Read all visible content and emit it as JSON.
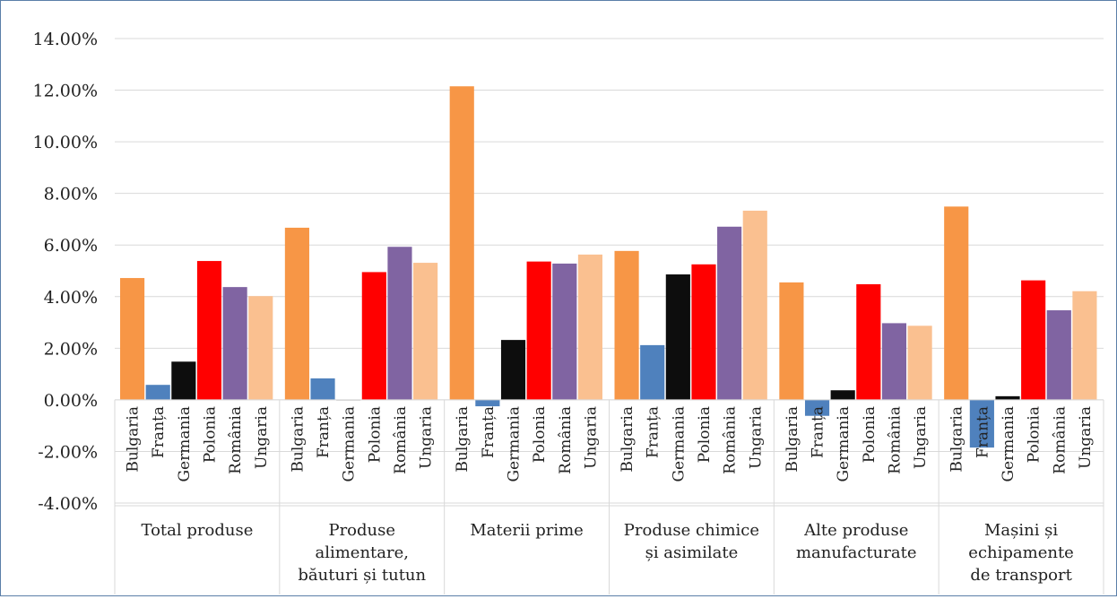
{
  "chart_data": {
    "type": "bar",
    "title": "",
    "xlabel": "",
    "ylabel": "",
    "ylim": [
      -0.04,
      0.14
    ],
    "y_ticks": [
      "-4.00%",
      "-2.00%",
      "0.00%",
      "2.00%",
      "4.00%",
      "6.00%",
      "8.00%",
      "10.00%",
      "12.00%",
      "14.00%"
    ],
    "grid": true,
    "legend": "none",
    "countries": [
      "Bulgaria",
      "Franța",
      "Germania",
      "Polonia",
      "România",
      "Ungaria"
    ],
    "country_colors": [
      "#f79646",
      "#4f81bd",
      "#0d0d0d",
      "#ff0000",
      "#8064a2",
      "#fac090"
    ],
    "groups": [
      {
        "label_lines": [
          "Total produse"
        ],
        "values": [
          0.0472,
          0.0058,
          0.0148,
          0.0538,
          0.0437,
          0.0402
        ]
      },
      {
        "label_lines": [
          "Produse",
          "alimentare,",
          "băuturi și tutun"
        ],
        "values": [
          0.0667,
          0.0083,
          0.0,
          0.0495,
          0.0593,
          0.0531
        ]
      },
      {
        "label_lines": [
          "Materii prime"
        ],
        "values": [
          0.1215,
          -0.0025,
          0.0232,
          0.0536,
          0.0528,
          0.0563
        ]
      },
      {
        "label_lines": [
          "Produse chimice",
          "și asimilate"
        ],
        "values": [
          0.0577,
          0.0212,
          0.0486,
          0.0525,
          0.0671,
          0.0733
        ]
      },
      {
        "label_lines": [
          "Alte produse",
          "manufacturate"
        ],
        "values": [
          0.0455,
          -0.0062,
          0.0037,
          0.0448,
          0.0297,
          0.0287
        ]
      },
      {
        "label_lines": [
          "Mașini și",
          "echipamente",
          "de transport"
        ],
        "values": [
          0.0749,
          -0.0185,
          0.0014,
          0.0463,
          0.0347,
          0.0421
        ]
      }
    ]
  }
}
